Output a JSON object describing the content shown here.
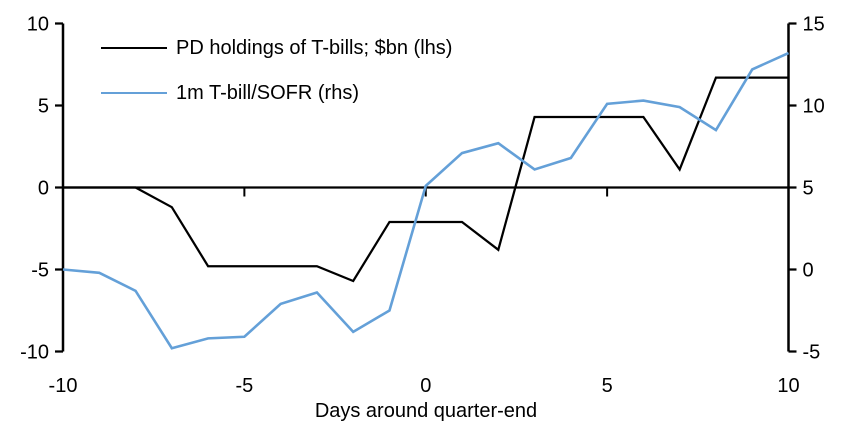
{
  "chart_data": {
    "type": "line",
    "title": "",
    "xlabel": "Days around quarter-end",
    "grid": false,
    "legend_position": "top-left",
    "x": [
      -10,
      -9,
      -8,
      -7,
      -6,
      -5,
      -4,
      -3,
      -2,
      -1,
      0,
      1,
      2,
      3,
      4,
      5,
      6,
      7,
      8,
      9,
      10
    ],
    "series": [
      {
        "name": "PD holdings of T-bills; $bn (lhs)",
        "axis": "left",
        "color": "#000000",
        "stroke_width": 2.25,
        "values": [
          0,
          0,
          0,
          -1.2,
          -4.8,
          -4.8,
          -4.8,
          -4.8,
          -5.7,
          -2.1,
          -2.1,
          -2.1,
          -3.8,
          4.3,
          4.3,
          4.3,
          4.3,
          1.1,
          6.7,
          6.7,
          6.7
        ]
      },
      {
        "name": "1m T-bill/SOFR (rhs)",
        "axis": "right",
        "color": "#64A0D8",
        "stroke_width": 2.6,
        "values": [
          0.0,
          -0.2,
          -1.3,
          -4.8,
          -4.2,
          -4.1,
          -2.1,
          -1.4,
          -3.8,
          -2.5,
          5.1,
          7.1,
          7.7,
          6.1,
          6.8,
          10.1,
          10.3,
          9.9,
          8.5,
          12.2,
          13.2
        ]
      }
    ],
    "left_axis": {
      "ticks": [
        10,
        5,
        0,
        -5,
        -10
      ],
      "range": [
        -10,
        10
      ]
    },
    "right_axis": {
      "ticks": [
        15,
        10,
        5,
        0,
        -5
      ],
      "range": [
        -5,
        15
      ]
    },
    "x_axis": {
      "ticks": [
        -10,
        -5,
        0,
        5,
        10
      ],
      "range": [
        -10,
        10
      ]
    }
  },
  "colors": {
    "axis": "#000000",
    "background": "#ffffff"
  }
}
